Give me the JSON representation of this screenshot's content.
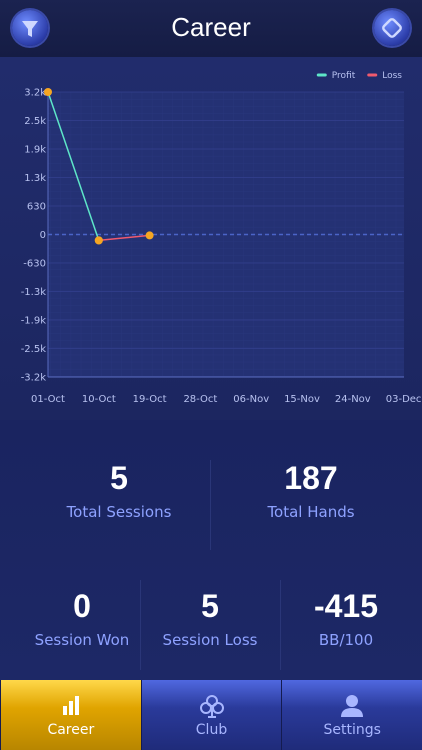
{
  "header": {
    "title": "Career"
  },
  "chart_data": {
    "type": "line",
    "categories": [
      "01-Oct",
      "10-Oct",
      "19-Oct",
      "28-Oct",
      "06-Nov",
      "15-Nov",
      "24-Nov",
      "03-Dec"
    ],
    "series": [
      {
        "name": "Profit",
        "color": "#5ee6c8",
        "values": [
          3150,
          -130,
          null,
          null,
          null,
          null,
          null,
          null
        ]
      },
      {
        "name": "Loss",
        "color": "#f05a6e",
        "values": [
          null,
          -130,
          -20,
          null,
          null,
          null,
          null,
          null
        ]
      }
    ],
    "marker_color": "#f5a623",
    "ylim": [
      -3150,
      3150
    ],
    "yticks": [
      {
        "value": 3150,
        "label": "3.2k"
      },
      {
        "value": 2520,
        "label": "2.5k"
      },
      {
        "value": 1890,
        "label": "1.9k"
      },
      {
        "value": 1260,
        "label": "1.3k"
      },
      630,
      0,
      -630,
      {
        "value": -1260,
        "label": "-1.3k"
      },
      {
        "value": -1890,
        "label": "-1.9k"
      },
      {
        "value": -2520,
        "label": "-2.5k"
      },
      {
        "value": -3150,
        "label": "-3.2k"
      }
    ],
    "grid": true,
    "legend": "top-right"
  },
  "stats": [
    {
      "value": "5",
      "label": "Total Sessions"
    },
    {
      "value": "187",
      "label": "Total Hands"
    },
    {
      "value": "0",
      "label": "Session Won"
    },
    {
      "value": "5",
      "label": "Session Loss"
    },
    {
      "value": "-415",
      "label": "BB/100"
    }
  ],
  "tabs": [
    {
      "label": "Career",
      "active": true
    },
    {
      "label": "Club",
      "active": false
    },
    {
      "label": "Settings",
      "active": false
    }
  ]
}
